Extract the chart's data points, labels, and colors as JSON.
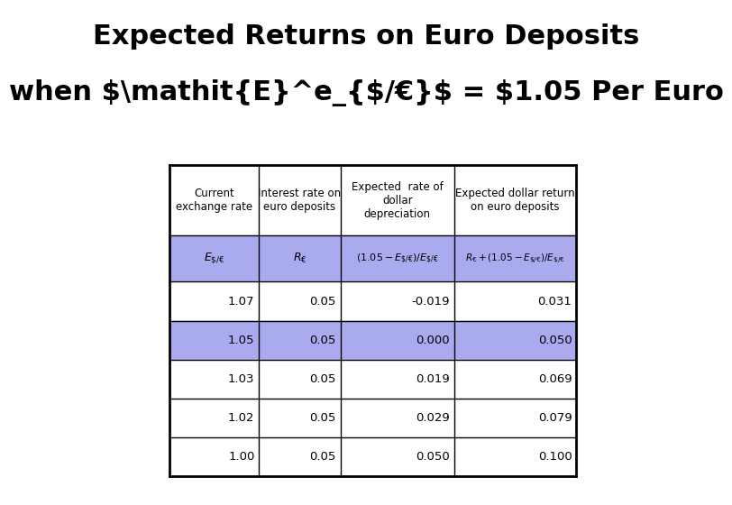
{
  "title_line1": "Expected Returns on Euro Deposits",
  "title_line2": "when ",
  "title_line2b": " = $1.05 Per Euro",
  "background_color": "#ffffff",
  "table_header_bg": "#ffffff",
  "table_highlight_bg": "#aaaaee",
  "table_data": [
    [
      "Current\nexchange rate",
      "Interest rate on\neuro deposits",
      "Expected  rate of\ndollar\ndepreciation",
      "Expected dollar return\non euro deposits"
    ],
    [
      "E_$/€",
      "R_€",
      "(1.05 - E_$/€)/E_$/€",
      "R_€ + (1.05 - E_$/€)/E_$/€"
    ],
    [
      "1.07",
      "0.05",
      "-0.019",
      "0.031"
    ],
    [
      "1.05",
      "0.05",
      "0.000",
      "0.050"
    ],
    [
      "1.03",
      "0.05",
      "0.019",
      "0.069"
    ],
    [
      "1.02",
      "0.05",
      "0.029",
      "0.079"
    ],
    [
      "1.00",
      "0.05",
      "0.050",
      "0.100"
    ]
  ],
  "highlight_rows": [
    1,
    3
  ],
  "col_aligns": [
    "center",
    "center",
    "center",
    "center"
  ],
  "data_aligns": [
    "right",
    "right",
    "right",
    "right"
  ]
}
